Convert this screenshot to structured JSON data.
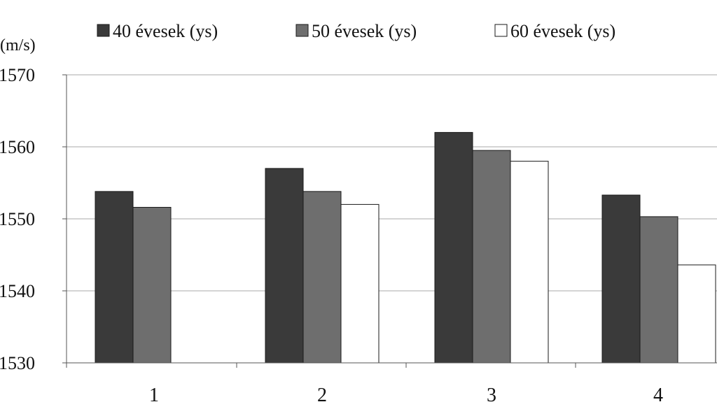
{
  "chart_data": {
    "type": "bar",
    "title": "",
    "xlabel": "",
    "ylabel": "(m/s)",
    "categories": [
      "1",
      "2",
      "3",
      "4"
    ],
    "ylim": [
      1530,
      1570
    ],
    "yticks": [
      "1530",
      "1540",
      "1550",
      "1560",
      "1570"
    ],
    "grid": true,
    "legend_position": "top",
    "series": [
      {
        "name": "40 évesek (ys)",
        "color": "#3a3a3a",
        "values": [
          1553.8,
          1557,
          1562,
          1553.3
        ]
      },
      {
        "name": "50 évesek (ys)",
        "color": "#6e6e6e",
        "values": [
          1551.6,
          1553.8,
          1559.5,
          1550.3
        ]
      },
      {
        "name": "60 évesek (ys)",
        "color": "#ffffff",
        "values": [
          null,
          1552,
          1558,
          1543.6
        ]
      }
    ]
  }
}
